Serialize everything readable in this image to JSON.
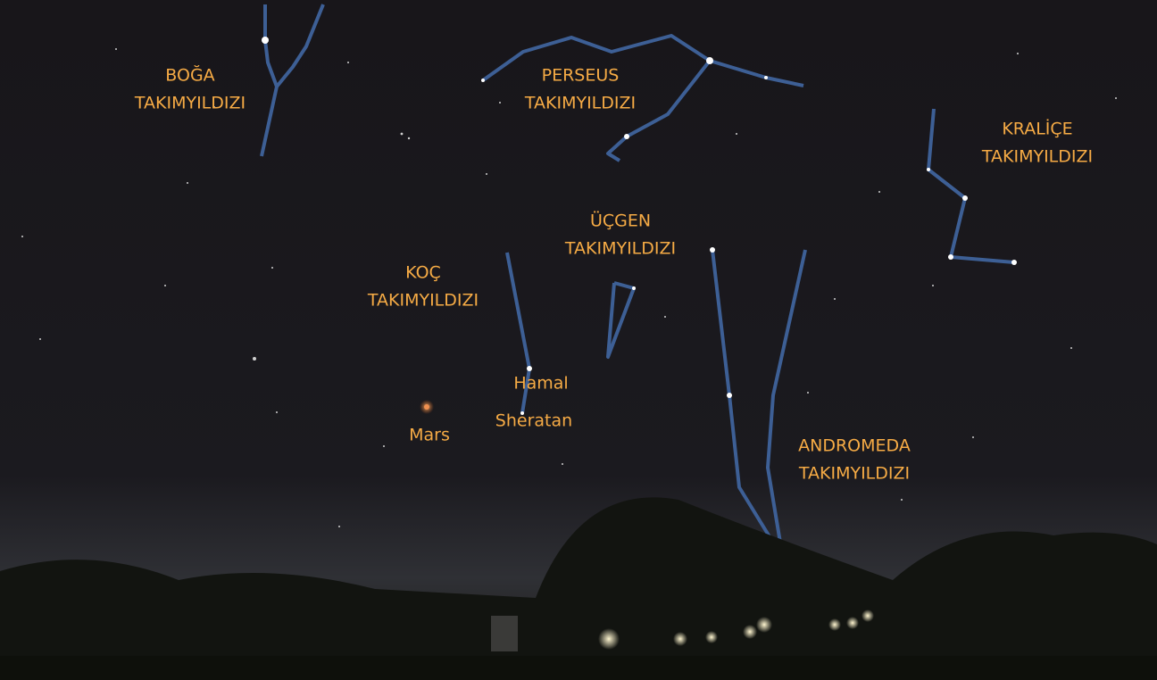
{
  "labels": [
    {
      "lines": [
        "BOĞA",
        "TAKIMYILDIZI"
      ]
    },
    {
      "lines": [
        "PERSEUS",
        "TAKIMYILDIZI"
      ]
    },
    {
      "lines": [
        "KRALİÇE",
        "TAKIMYILDIZI"
      ]
    },
    {
      "lines": [
        "ÜÇGEN",
        "TAKIMYILDIZI"
      ]
    },
    {
      "lines": [
        "KOÇ",
        "TAKIMYILDIZI"
      ]
    },
    {
      "lines": [
        "ANDROMEDA",
        "TAKIMYILDIZI"
      ]
    }
  ],
  "objects": [
    "Hamal",
    "Sheratan",
    "Mars"
  ]
}
